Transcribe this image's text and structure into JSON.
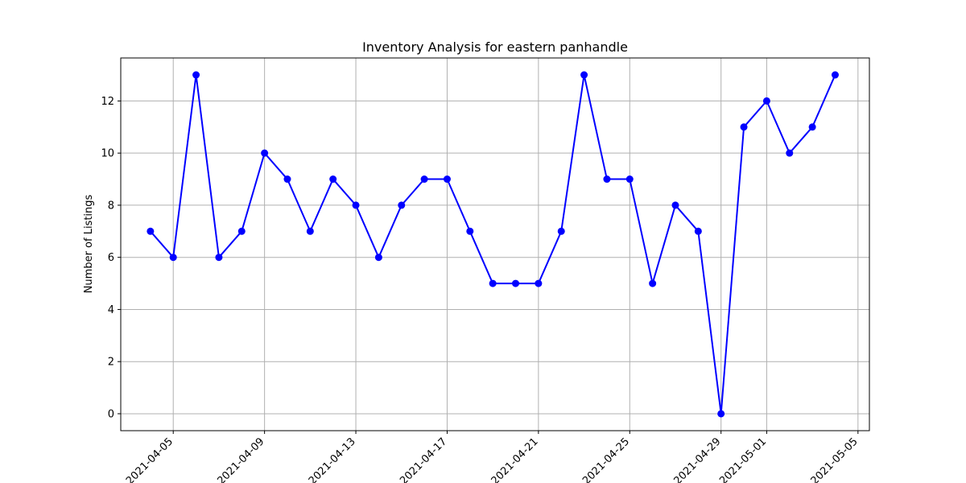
{
  "chart_data": {
    "type": "line",
    "title": "Inventory Analysis for eastern panhandle",
    "xlabel": "",
    "ylabel": "Number of Listings",
    "grid": true,
    "x_is_date": true,
    "x": [
      "2021-04-04",
      "2021-04-05",
      "2021-04-06",
      "2021-04-07",
      "2021-04-08",
      "2021-04-09",
      "2021-04-10",
      "2021-04-11",
      "2021-04-12",
      "2021-04-13",
      "2021-04-14",
      "2021-04-15",
      "2021-04-16",
      "2021-04-17",
      "2021-04-18",
      "2021-04-19",
      "2021-04-20",
      "2021-04-21",
      "2021-04-22",
      "2021-04-23",
      "2021-04-24",
      "2021-04-25",
      "2021-04-26",
      "2021-04-27",
      "2021-04-28",
      "2021-04-29",
      "2021-04-30",
      "2021-05-01",
      "2021-05-02",
      "2021-05-03",
      "2021-05-04"
    ],
    "series": [
      {
        "color": "#0000ff",
        "marker": "circle",
        "values": [
          7,
          6,
          13,
          6,
          7,
          10,
          9,
          7,
          9,
          8,
          6,
          8,
          9,
          9,
          7,
          5,
          5,
          5,
          7,
          13,
          9,
          9,
          5,
          8,
          7,
          0,
          11,
          12,
          10,
          11,
          13
        ]
      }
    ],
    "xlim": [
      "2021-04-02T16:48",
      "2021-05-05T12:00"
    ],
    "ylim": [
      -0.65,
      13.65
    ],
    "xticks": [
      "2021-04-05",
      "2021-04-09",
      "2021-04-13",
      "2021-04-17",
      "2021-04-21",
      "2021-04-25",
      "2021-04-29",
      "2021-05-01",
      "2021-05-05"
    ],
    "yticks": [
      0,
      2,
      4,
      6,
      8,
      10,
      12
    ]
  }
}
